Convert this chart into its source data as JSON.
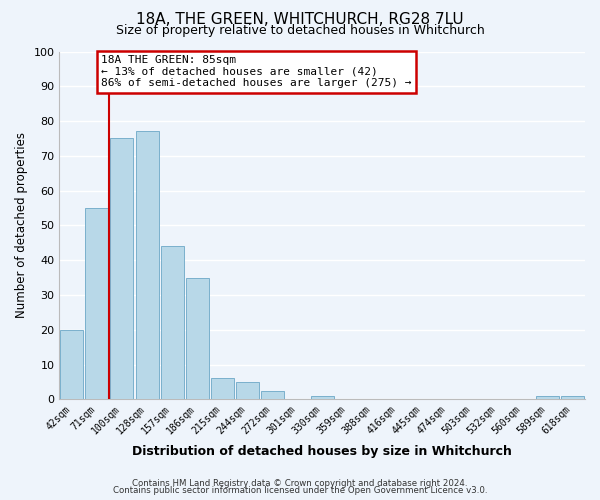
{
  "title": "18A, THE GREEN, WHITCHURCH, RG28 7LU",
  "subtitle": "Size of property relative to detached houses in Whitchurch",
  "xlabel": "Distribution of detached houses by size in Whitchurch",
  "ylabel": "Number of detached properties",
  "bar_labels": [
    "42sqm",
    "71sqm",
    "100sqm",
    "128sqm",
    "157sqm",
    "186sqm",
    "215sqm",
    "244sqm",
    "272sqm",
    "301sqm",
    "330sqm",
    "359sqm",
    "388sqm",
    "416sqm",
    "445sqm",
    "474sqm",
    "503sqm",
    "532sqm",
    "560sqm",
    "589sqm",
    "618sqm"
  ],
  "bar_values": [
    20,
    55,
    75,
    77,
    44,
    35,
    6,
    5,
    2.5,
    0,
    1,
    0,
    0,
    0,
    0,
    0,
    0,
    0,
    0,
    1,
    1
  ],
  "bar_color": "#b8d8e8",
  "bar_edge_color": "#7ab0cc",
  "ylim": [
    0,
    100
  ],
  "yticks": [
    0,
    10,
    20,
    30,
    40,
    50,
    60,
    70,
    80,
    90,
    100
  ],
  "annotation_title": "18A THE GREEN: 85sqm",
  "annotation_line1": "← 13% of detached houses are smaller (42)",
  "annotation_line2": "86% of semi-detached houses are larger (275) →",
  "footer_line1": "Contains HM Land Registry data © Crown copyright and database right 2024.",
  "footer_line2": "Contains public sector information licensed under the Open Government Licence v3.0.",
  "background_color": "#eef4fb",
  "plot_background": "#eef4fb",
  "grid_color": "#ffffff",
  "title_fontsize": 11,
  "subtitle_fontsize": 9,
  "red_line_color": "#cc0000",
  "red_line_x": 1.5
}
